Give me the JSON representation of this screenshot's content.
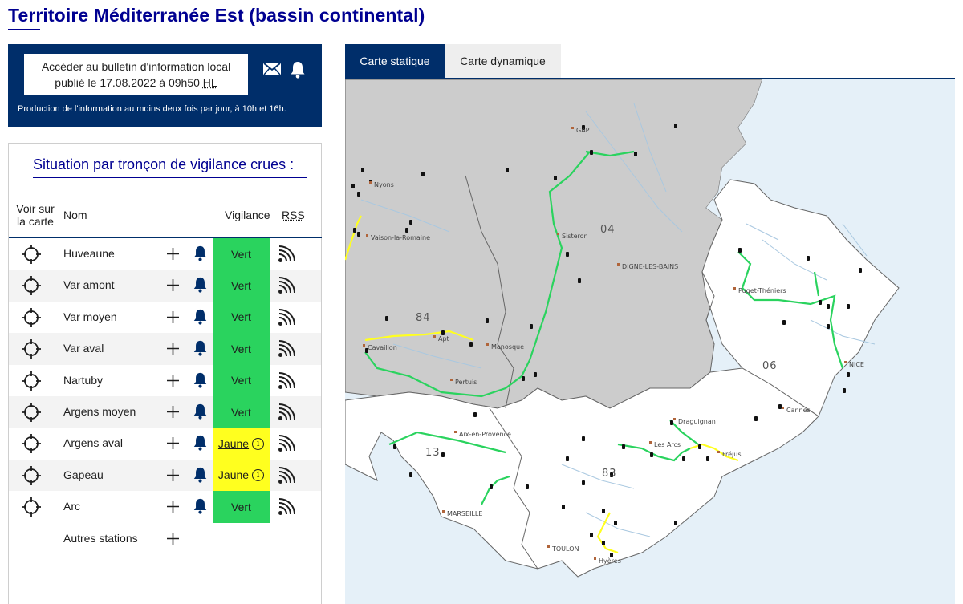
{
  "page_title": "Territoire Méditerranée Est (bassin continental)",
  "bulletin": {
    "line1": "Accéder au bulletin d'information local",
    "line2_prefix": "publié le 17.08.2022 à 09h50 ",
    "line2_hl": "HL",
    "note": "Production de l'information au moins deux fois par jour, à 10h et 16h."
  },
  "situation": {
    "title": "Situation par tronçon de vigilance crues :",
    "headers": {
      "voir_line1": "Voir sur",
      "voir_line2": "la carte",
      "nom": "Nom",
      "vigilance": "Vigilance",
      "rss": "RSS"
    },
    "rows": [
      {
        "name": "Huveaune",
        "vigilance": "Vert",
        "level": "vert"
      },
      {
        "name": "Var amont",
        "vigilance": "Vert",
        "level": "vert"
      },
      {
        "name": "Var moyen",
        "vigilance": "Vert",
        "level": "vert"
      },
      {
        "name": "Var aval",
        "vigilance": "Vert",
        "level": "vert"
      },
      {
        "name": "Nartuby",
        "vigilance": "Vert",
        "level": "vert"
      },
      {
        "name": "Argens moyen",
        "vigilance": "Vert",
        "level": "vert"
      },
      {
        "name": "Argens aval",
        "vigilance": "Jaune",
        "level": "jaune"
      },
      {
        "name": "Gapeau",
        "vigilance": "Jaune",
        "level": "jaune"
      },
      {
        "name": "Arc",
        "vigilance": "Vert",
        "level": "vert"
      }
    ],
    "other_stations": "Autres stations",
    "info_glyph": "i"
  },
  "tabs": {
    "static": "Carte statique",
    "dynamic": "Carte dynamique"
  },
  "map": {
    "towns": [
      "GAP",
      "Nyons",
      "Vaison-la-Romaine",
      "Sisteron",
      "DIGNE-LES-BAINS",
      "Puget-Théniers",
      "Cavaillon",
      "Apt",
      "Manosque",
      "Pertuis",
      "NICE",
      "Cannes",
      "Draguignan",
      "Les Arcs",
      "Fréjus",
      "Aix-en-Provence",
      "MARSEILLE",
      "TOULON",
      "Hyères"
    ],
    "departments": [
      "04",
      "84",
      "06",
      "13",
      "83"
    ]
  },
  "colors": {
    "brand": "#000091",
    "navy": "#002e6a",
    "vert": "#2ad35e",
    "jaune": "#ffff1f",
    "sea": "#e5f0f8",
    "grey_zone": "#cccccc"
  },
  "icons": {
    "locate": "crosshair-icon",
    "add": "plus-icon",
    "alert": "bell-icon",
    "feed": "rss-icon",
    "mail": "mail-icon"
  }
}
